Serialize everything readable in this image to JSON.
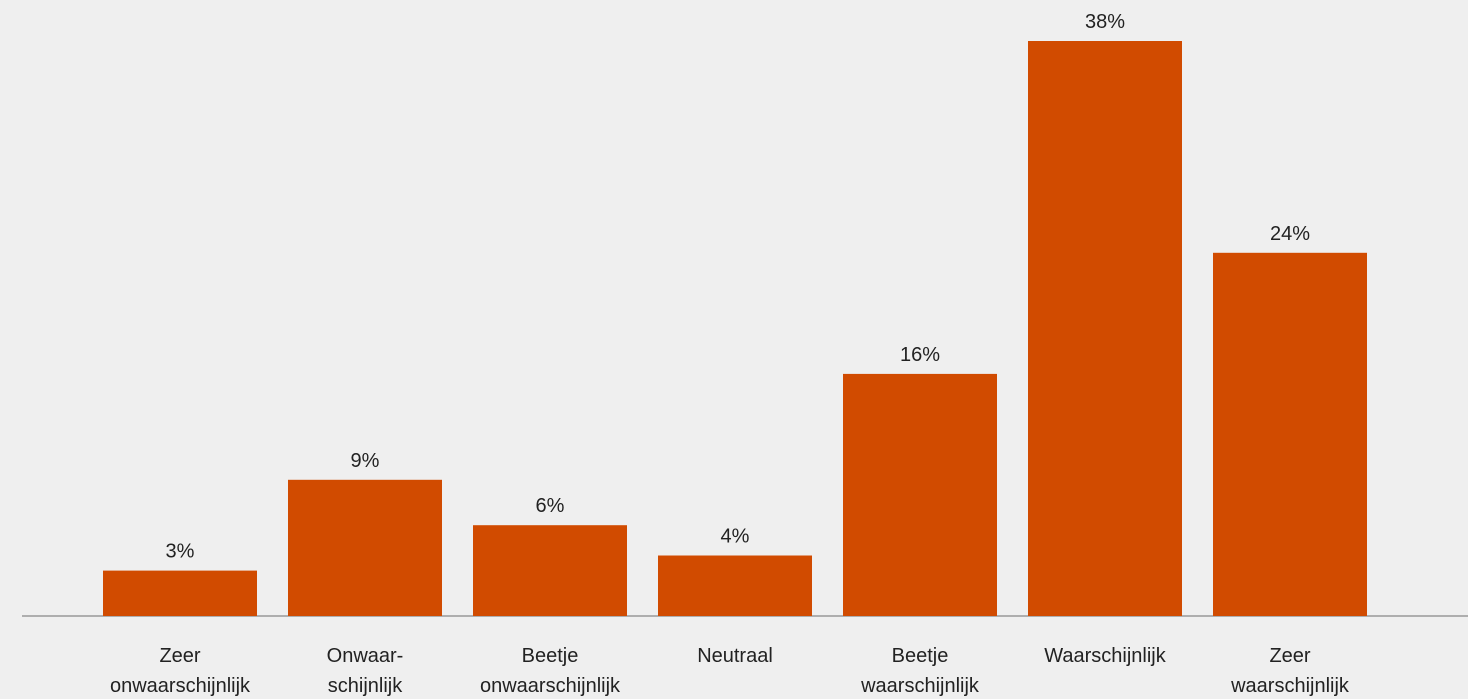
{
  "chart_data": {
    "type": "bar",
    "categories": [
      [
        "Zeer",
        "onwaarschijnlijk"
      ],
      [
        "Onwaar-",
        "schijnlijk"
      ],
      [
        "Beetje",
        "onwaarschijnlijk"
      ],
      [
        "Neutraal"
      ],
      [
        "Beetje",
        "waarschijnlijk"
      ],
      [
        "Waarschijnlijk"
      ],
      [
        "Zeer",
        "waarschijnlijk"
      ]
    ],
    "values": [
      3,
      9,
      6,
      4,
      16,
      38,
      24
    ],
    "value_labels": [
      "3%",
      "9%",
      "6%",
      "4%",
      "16%",
      "38%",
      "24%"
    ],
    "unit": "%",
    "ylim": [
      0,
      38
    ],
    "grid": false,
    "legend": "none",
    "title": "",
    "xlabel": "",
    "ylabel": ""
  },
  "colors": {
    "bar": "#d14b00",
    "background": "#efefef",
    "axis": "#999999",
    "text": "#222222"
  }
}
